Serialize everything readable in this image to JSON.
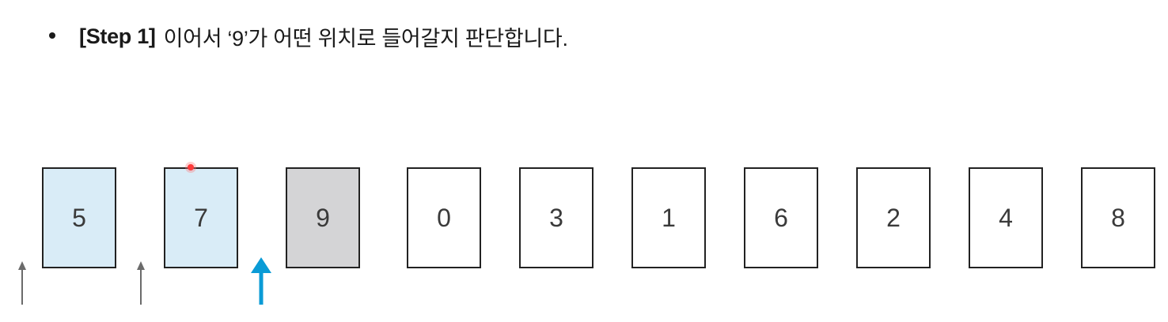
{
  "heading": {
    "step_label": "[Step 1]",
    "text": "이어서 ‘9’가 어떤 위치로 들어갈지 판단합니다."
  },
  "cards": [
    {
      "value": "5",
      "state": "sorted"
    },
    {
      "value": "7",
      "state": "sorted"
    },
    {
      "value": "9",
      "state": "current"
    },
    {
      "value": "0",
      "state": "unsorted"
    },
    {
      "value": "3",
      "state": "unsorted"
    },
    {
      "value": "1",
      "state": "unsorted"
    },
    {
      "value": "6",
      "state": "unsorted"
    },
    {
      "value": "2",
      "state": "unsorted"
    },
    {
      "value": "4",
      "state": "unsorted"
    },
    {
      "value": "8",
      "state": "unsorted"
    }
  ],
  "arrows": [
    {
      "type": "candidate-position",
      "color": "#6b6b6b"
    },
    {
      "type": "candidate-position",
      "color": "#6b6b6b"
    },
    {
      "type": "chosen-position",
      "color": "#0a9bd6"
    }
  ],
  "colors": {
    "sorted_fill": "#d9ecf7",
    "current_fill": "#d4d4d6",
    "unsorted_fill": "#ffffff",
    "card_border": "#222222",
    "chosen_arrow": "#0a9bd6",
    "candidate_arrow": "#6b6b6b",
    "cursor_dot": "#ff3b3b"
  }
}
